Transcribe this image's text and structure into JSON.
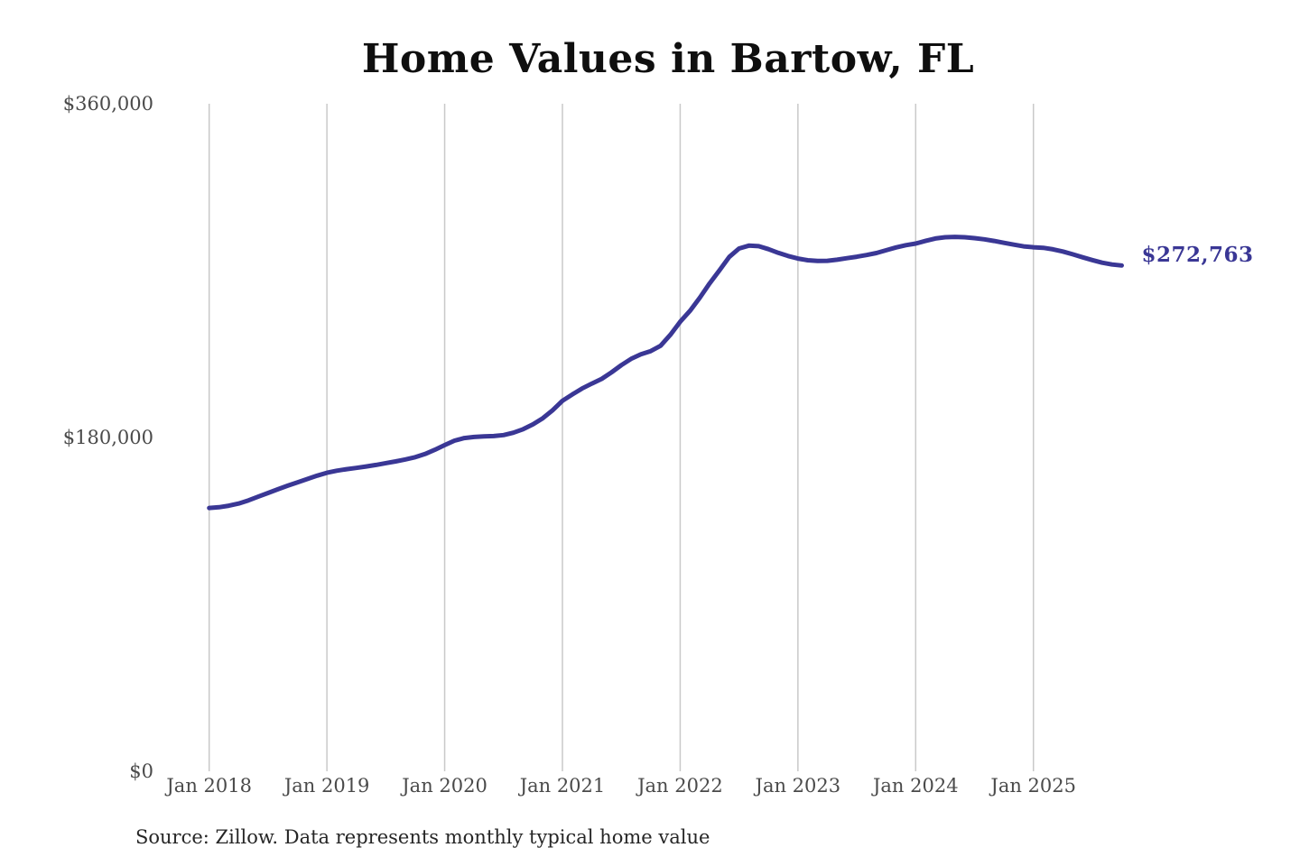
{
  "header": {
    "title": "Home Values in Bartow, FL"
  },
  "footer": {
    "source_note": "Source: Zillow. Data represents monthly typical home value"
  },
  "chart_data": {
    "type": "line",
    "title": "Home Values in Bartow, FL",
    "series_name": "Monthly typical home value",
    "unit": "USD",
    "grid": "vertical-gridlines-only",
    "legend_position": "none",
    "ylim": [
      0,
      360000
    ],
    "y_ticks": [
      0,
      180000,
      360000
    ],
    "y_tick_labels": [
      "$0",
      "$180,000",
      "$360,000"
    ],
    "x_tick_labels": [
      "Jan 2018",
      "Jan 2019",
      "Jan 2020",
      "Jan 2021",
      "Jan 2022",
      "Jan 2023",
      "Jan 2024",
      "Jan 2025"
    ],
    "end_label": "$272,763",
    "end_point": {
      "x": "2025-10",
      "value": 272763
    },
    "line_color": "#3a3795",
    "gridline_color": "#c9c9c9",
    "tick_label_color": "#4a4a4a",
    "x": [
      "2018-01",
      "2018-02",
      "2018-03",
      "2018-04",
      "2018-05",
      "2018-06",
      "2018-07",
      "2018-08",
      "2018-09",
      "2018-10",
      "2018-11",
      "2018-12",
      "2019-01",
      "2019-02",
      "2019-03",
      "2019-04",
      "2019-05",
      "2019-06",
      "2019-07",
      "2019-08",
      "2019-09",
      "2019-10",
      "2019-11",
      "2019-12",
      "2020-01",
      "2020-02",
      "2020-03",
      "2020-04",
      "2020-05",
      "2020-06",
      "2020-07",
      "2020-08",
      "2020-09",
      "2020-10",
      "2020-11",
      "2020-12",
      "2021-01",
      "2021-02",
      "2021-03",
      "2021-04",
      "2021-05",
      "2021-06",
      "2021-07",
      "2021-08",
      "2021-09",
      "2021-10",
      "2021-11",
      "2021-12",
      "2022-01",
      "2022-02",
      "2022-03",
      "2022-04",
      "2022-05",
      "2022-06",
      "2022-07",
      "2022-08",
      "2022-09",
      "2022-10",
      "2022-11",
      "2022-12",
      "2023-01",
      "2023-02",
      "2023-03",
      "2023-04",
      "2023-05",
      "2023-06",
      "2023-07",
      "2023-08",
      "2023-09",
      "2023-10",
      "2023-11",
      "2023-12",
      "2024-01",
      "2024-02",
      "2024-03",
      "2024-04",
      "2024-05",
      "2024-06",
      "2024-07",
      "2024-08",
      "2024-09",
      "2024-10",
      "2024-11",
      "2024-12",
      "2025-01",
      "2025-02",
      "2025-03",
      "2025-04",
      "2025-05",
      "2025-06",
      "2025-07",
      "2025-08",
      "2025-09",
      "2025-10"
    ],
    "values": [
      142000,
      142400,
      143200,
      144400,
      146100,
      148100,
      150100,
      152100,
      154000,
      155800,
      157600,
      159400,
      161000,
      162100,
      162900,
      163600,
      164400,
      165200,
      166200,
      167100,
      168200,
      169400,
      171100,
      173400,
      175900,
      178300,
      179700,
      180300,
      180600,
      180800,
      181300,
      182600,
      184500,
      187100,
      190400,
      194700,
      199800,
      203200,
      206400,
      209100,
      211600,
      215100,
      219000,
      222400,
      224900,
      226600,
      229500,
      235400,
      242400,
      248300,
      255400,
      263100,
      270100,
      277400,
      281900,
      283500,
      283200,
      281600,
      279600,
      277900,
      276500,
      275600,
      275200,
      275300,
      275900,
      276700,
      277500,
      278400,
      279500,
      281000,
      282500,
      283700,
      284600,
      286000,
      287300,
      288000,
      288200,
      288000,
      287500,
      286900,
      286000,
      285000,
      284000,
      283100,
      282600,
      282300,
      281500,
      280300,
      278800,
      277200,
      275700,
      274300,
      273300,
      272763
    ]
  }
}
